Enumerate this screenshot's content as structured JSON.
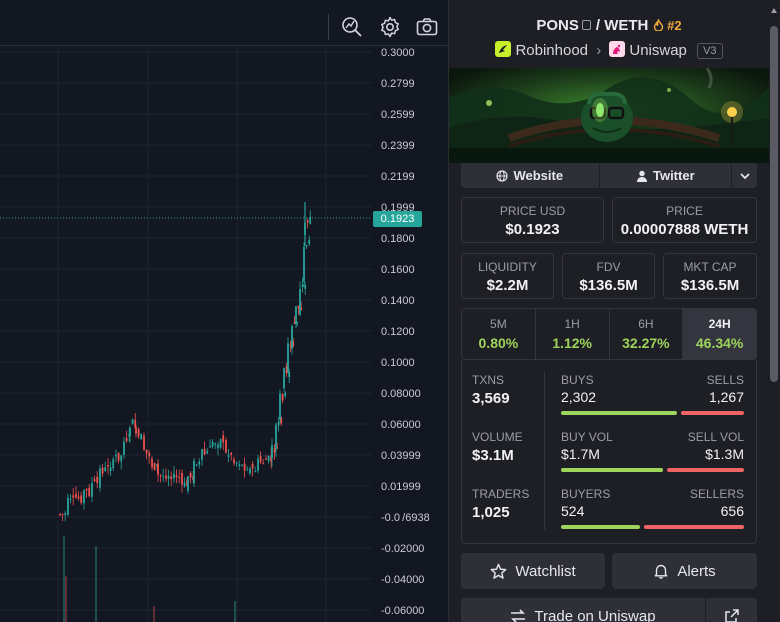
{
  "chart": {
    "current_price_label": "0.1923",
    "price_axis": [
      "0.3000",
      "0.2799",
      "0.2599",
      "0.2399",
      "0.2199",
      "0.1999",
      "0.1800",
      "0.1600",
      "0.1400",
      "0.1200",
      "0.1000",
      "0.08000",
      "0.06000",
      "0.03999",
      "0.01999",
      "-0.0 /6938",
      "-0.02000",
      "-0.04000",
      "-0.06000"
    ],
    "toolbar_icons": [
      "magnifier-icon",
      "gear-icon",
      "camera-icon"
    ],
    "colors": {
      "up": "#26a69a",
      "down": "#ef5350",
      "grid": "#1f2330",
      "background": "#131722"
    }
  },
  "pair": {
    "base": "PONS",
    "quote": "WETH",
    "separator": "/",
    "rank": "#2",
    "chain": "Robinhood",
    "dex": "Uniswap",
    "version": "V3"
  },
  "links": {
    "website": "Website",
    "twitter": "Twitter"
  },
  "metrics": {
    "price_usd_label": "PRICE USD",
    "price_usd": "$0.1923",
    "price_label": "PRICE",
    "price": "0.00007888 WETH",
    "liquidity_label": "LIQUIDITY",
    "liquidity": "$2.2M",
    "fdv_label": "FDV",
    "fdv": "$136.5M",
    "mkt_cap_label": "MKT CAP",
    "mkt_cap": "$136.5M"
  },
  "timeframes": [
    {
      "label": "5M",
      "change": "0.80%"
    },
    {
      "label": "1H",
      "change": "1.12%"
    },
    {
      "label": "6H",
      "change": "32.27%"
    },
    {
      "label": "24H",
      "change": "46.34%",
      "active": true
    }
  ],
  "stats": {
    "txns_label": "TXNS",
    "txns": "3,569",
    "volume_label": "VOLUME",
    "volume": "$3.1M",
    "traders_label": "TRADERS",
    "traders": "1,025",
    "buys_label": "BUYS",
    "buys": "2,302",
    "sells_label": "SELLS",
    "sells": "1,267",
    "buys_fraction": 0.645,
    "buy_vol_label": "BUY VOL",
    "buy_vol": "$1.7M",
    "sell_vol_label": "SELL VOL",
    "sell_vol": "$1.3M",
    "buy_vol_fraction": 0.567,
    "buyers_label": "BUYERS",
    "buyers": "524",
    "sellers_label": "SELLERS",
    "sellers": "656",
    "buyers_fraction": 0.444
  },
  "actions": {
    "watchlist": "Watchlist",
    "alerts": "Alerts",
    "trade": "Trade on Uniswap"
  },
  "colors": {
    "positive": "#9ed45b",
    "negative": "#ee6464",
    "accent": "#f3a93b"
  }
}
